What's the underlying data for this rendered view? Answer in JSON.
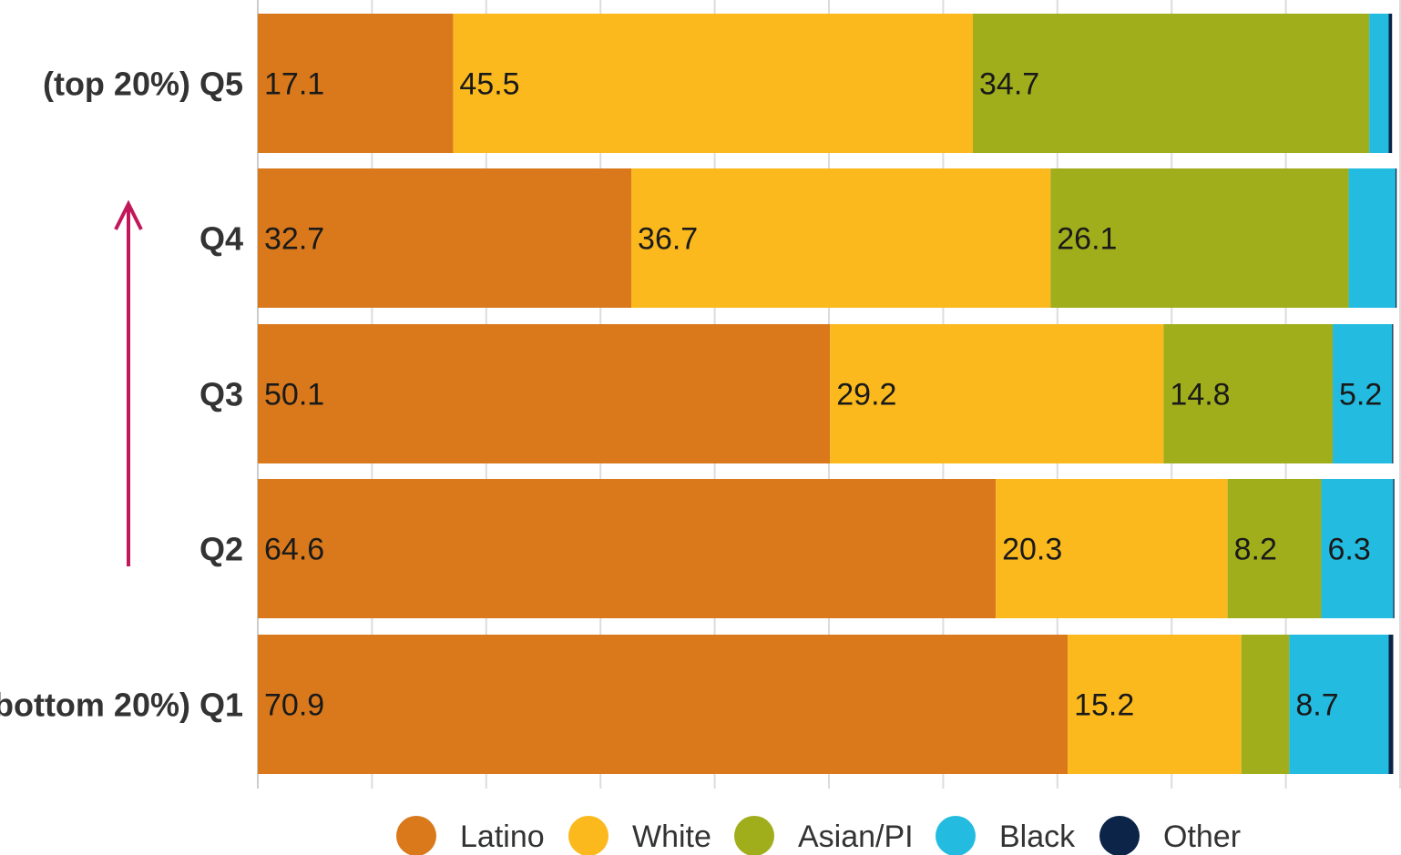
{
  "chart_data": {
    "type": "bar",
    "orientation": "horizontal",
    "stacked": true,
    "categories": [
      "(top 20%) Q5",
      "Q4",
      "Q3",
      "Q2",
      "(bottom 20%) Q1"
    ],
    "series": [
      {
        "name": "Latino",
        "color": "#D9791C",
        "values": [
          17.1,
          32.7,
          50.1,
          64.6,
          70.9
        ]
      },
      {
        "name": "White",
        "color": "#FBB91D",
        "values": [
          45.5,
          36.7,
          29.2,
          20.3,
          15.2
        ]
      },
      {
        "name": "Asian/PI",
        "color": "#A0AE1C",
        "values": [
          34.7,
          26.1,
          14.8,
          8.2,
          4.2
        ]
      },
      {
        "name": "Black",
        "color": "#23BCE0",
        "values": [
          1.7,
          4.1,
          5.2,
          6.3,
          8.7
        ]
      },
      {
        "name": "Other",
        "color": "#0B2447",
        "values": [
          0.3,
          0.1,
          0.1,
          0.1,
          0.4
        ]
      }
    ],
    "data_labels": [
      [
        "17.1",
        "45.5",
        "34.7",
        "",
        ""
      ],
      [
        "32.7",
        "36.7",
        "26.1",
        "",
        ""
      ],
      [
        "50.1",
        "29.2",
        "14.8",
        "5.2",
        ""
      ],
      [
        "64.6",
        "20.3",
        "8.2",
        "6.3",
        ""
      ],
      [
        "70.9",
        "15.2",
        "",
        "8.7",
        ""
      ]
    ],
    "xlim": [
      0,
      100
    ],
    "grid": true,
    "legend_position": "bottom",
    "annotation": "upward-arrow"
  }
}
